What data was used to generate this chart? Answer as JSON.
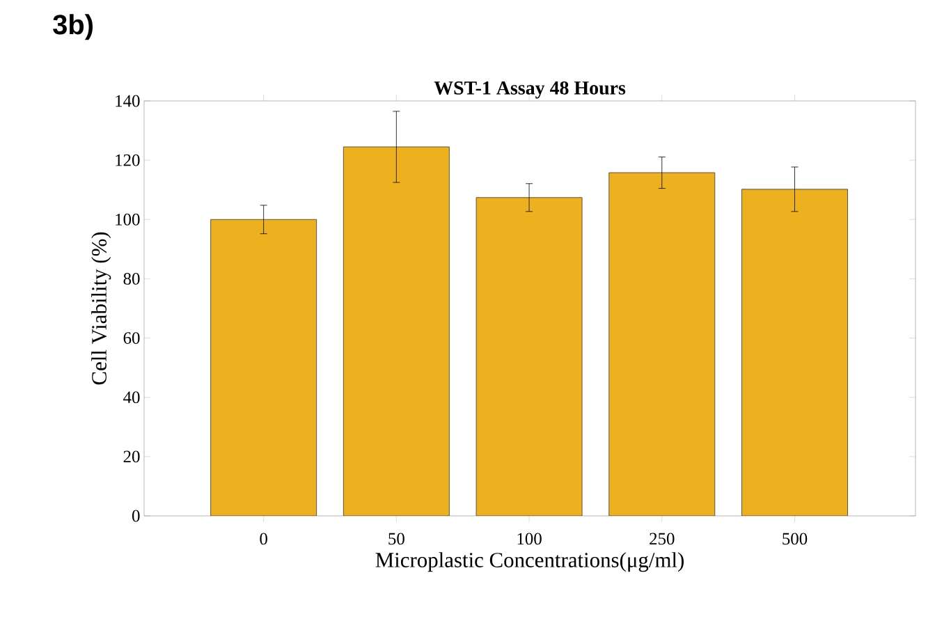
{
  "chart_data": {
    "type": "bar",
    "title": "WST-1 Assay 48 Hours",
    "xlabel": "Microplastic Concentrations(μg/ml)",
    "ylabel": "Cell Viability (%)",
    "annotations": [
      "3b)"
    ],
    "categories": [
      "0",
      "50",
      "100",
      "250",
      "500"
    ],
    "values": [
      100,
      124.5,
      107.4,
      115.8,
      110.2
    ],
    "errors": [
      4.8,
      12,
      4.7,
      5.3,
      7.5
    ],
    "color": "#edb120",
    "ylim": [
      0,
      140
    ],
    "yticks": [
      0,
      20,
      40,
      60,
      80,
      100,
      120,
      140
    ]
  }
}
